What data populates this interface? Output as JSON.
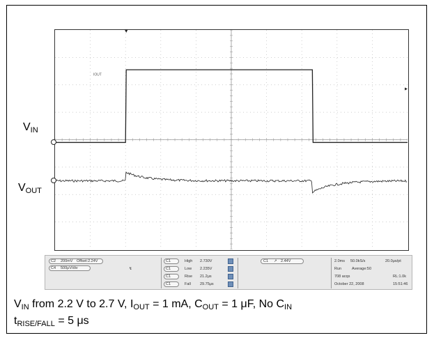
{
  "chart_data": {
    "type": "line",
    "labels": {
      "vin_main": "V",
      "vin_sub": "IN",
      "vout_main": "V",
      "vout_sub": "OUT",
      "trace_tag": "IOUT"
    },
    "grid": {
      "divisions_x": 10,
      "divisions_y": 8,
      "visible": true
    },
    "series": [
      {
        "name": "VIN",
        "color": "#222222",
        "low_V": 2.2,
        "high_V": 2.7,
        "rise_time_div": 2.0,
        "fall_time_div": 7.3
      },
      {
        "name": "VOUT",
        "color": "#222222",
        "baseline_div": 5.5,
        "overshoot_div": 0.32,
        "undershoot_div": 0.42
      }
    ],
    "status_bar": {
      "ch2_scale": "200mV",
      "ch2_offset": "Offset:2.24V",
      "ch4_scale": "500μV/div",
      "ch_tag_1": "C2",
      "ch_tag_4": "C4",
      "measurements": [
        {
          "tag": "C1",
          "name": "High",
          "value": "2.730V"
        },
        {
          "tag": "C1",
          "name": "Low",
          "value": "2.235V"
        },
        {
          "tag": "C1",
          "name": "Rise",
          "value": "21.2μs"
        },
        {
          "tag": "C1",
          "name": "Fall",
          "value": "29.75μs"
        }
      ],
      "trigger_tag": "C1",
      "trigger_level": "2.44V",
      "timebase": "2.0ms",
      "sample_rate": "50.0kS/s",
      "sample_interval": "20.0μs/pt",
      "run_mode": "Run",
      "average": "Average:50",
      "acqs": "708 acqs",
      "record_length": "RL:1.0k",
      "date": "October 22, 2008",
      "time": "15:51:46"
    }
  },
  "caption": {
    "line1": [
      {
        "t": "V"
      },
      {
        "s": "IN"
      },
      {
        "t": " from 2.2 V to 2.7 V, I"
      },
      {
        "s": "OUT"
      },
      {
        "t": " = 1 mA, C"
      },
      {
        "s": "OUT"
      },
      {
        "t": " = 1 μF, No C"
      },
      {
        "s": "IN"
      }
    ],
    "line2": [
      {
        "t": "t"
      },
      {
        "s": "RISE/FALL"
      },
      {
        "t": " = 5 μs"
      }
    ]
  }
}
